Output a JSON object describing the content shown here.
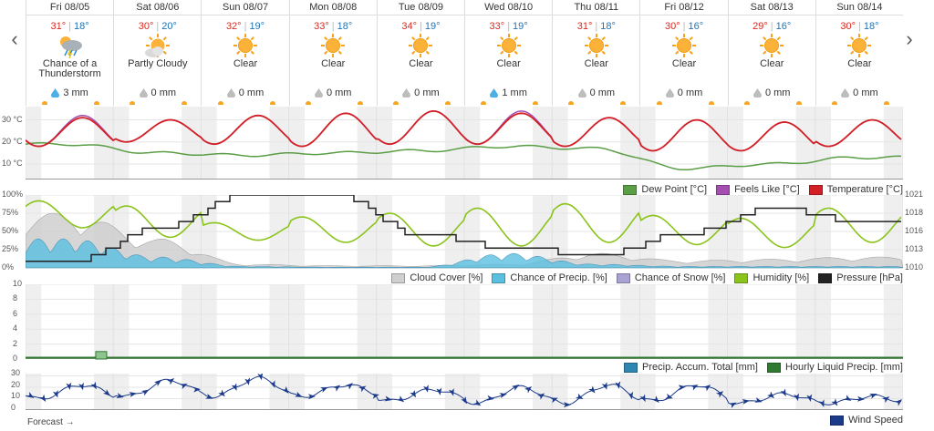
{
  "nav": {
    "prev": "‹",
    "next": "›"
  },
  "days": [
    {
      "name": "Fri 08/05",
      "hi": "31°",
      "lo": "18°",
      "icon": "thunderstorm-icon",
      "cond": "Chance of a Thunderstorm",
      "precip": "3 mm",
      "rain": true
    },
    {
      "name": "Sat 08/06",
      "hi": "30°",
      "lo": "20°",
      "icon": "partly-cloudy-icon",
      "cond": "Partly Cloudy",
      "precip": "0 mm",
      "rain": false
    },
    {
      "name": "Sun 08/07",
      "hi": "32°",
      "lo": "19°",
      "icon": "sun-icon",
      "cond": "Clear",
      "precip": "0 mm",
      "rain": false
    },
    {
      "name": "Mon 08/08",
      "hi": "33°",
      "lo": "18°",
      "icon": "sun-icon",
      "cond": "Clear",
      "precip": "0 mm",
      "rain": false
    },
    {
      "name": "Tue 08/09",
      "hi": "34°",
      "lo": "19°",
      "icon": "sun-icon",
      "cond": "Clear",
      "precip": "0 mm",
      "rain": false
    },
    {
      "name": "Wed 08/10",
      "hi": "33°",
      "lo": "19°",
      "icon": "sun-icon",
      "cond": "Clear",
      "precip": "1 mm",
      "rain": true
    },
    {
      "name": "Thu 08/11",
      "hi": "31°",
      "lo": "18°",
      "icon": "sun-icon",
      "cond": "Clear",
      "precip": "0 mm",
      "rain": false
    },
    {
      "name": "Fri 08/12",
      "hi": "30°",
      "lo": "16°",
      "icon": "sun-icon",
      "cond": "Clear",
      "precip": "0 mm",
      "rain": false
    },
    {
      "name": "Sat 08/13",
      "hi": "29°",
      "lo": "16°",
      "icon": "sun-icon",
      "cond": "Clear",
      "precip": "0 mm",
      "rain": false
    },
    {
      "name": "Sun 08/14",
      "hi": "30°",
      "lo": "18°",
      "icon": "sun-icon",
      "cond": "Clear",
      "precip": "0 mm",
      "rain": false
    }
  ],
  "colors": {
    "temperature": "#d32026",
    "feels_like": "#a44fb0",
    "dew_point": "#5a9e46",
    "cloud": "#cfcfcf",
    "precip_chance": "#5bc0e0",
    "snow": "#a9a3d3",
    "humidity": "#8ac41b",
    "pressure": "#222222",
    "accum": "#2f86b1",
    "hourly_liquid": "#2f7a2f",
    "wind": "#1c3a8a",
    "sun": "#f5a623"
  },
  "chart_data": [
    {
      "type": "line",
      "yticks": [
        "30 °C",
        "20 °C",
        "10 °C"
      ],
      "ylim": [
        3,
        36
      ],
      "legend": [
        "Dew Point [°C]",
        "Feels Like [°C]",
        "Temperature [°C]"
      ],
      "series": [
        {
          "name": "Temperature [°C]",
          "day_lo": [
            18,
            20,
            19,
            18,
            19,
            19,
            18,
            16,
            16,
            18
          ],
          "day_hi": [
            31,
            30,
            32,
            33,
            34,
            33,
            31,
            30,
            29,
            30
          ]
        },
        {
          "name": "Dew Point [°C]",
          "day_values": [
            19,
            15,
            14,
            15,
            16,
            18,
            17,
            8,
            10,
            13
          ]
        },
        {
          "name": "Feels Like [°C]",
          "day_hi": [
            32,
            30,
            32,
            33,
            34,
            34,
            31,
            30,
            29,
            30
          ]
        }
      ]
    },
    {
      "type": "area",
      "yticks_left": [
        "100%",
        "75%",
        "50%",
        "25%",
        "0%"
      ],
      "yticks_right": [
        "1021",
        "1018",
        "1016",
        "1013",
        "1010"
      ],
      "legend": [
        "Cloud Cover [%]",
        "Chance of Precip. [%]",
        "Chance of Snow [%]",
        "Humidity [%]",
        "Pressure [hPa]"
      ],
      "series": [
        {
          "name": "Humidity [%]",
          "day_lo": [
            55,
            42,
            38,
            35,
            30,
            30,
            35,
            32,
            28,
            35
          ],
          "day_hi": [
            92,
            85,
            62,
            70,
            75,
            82,
            88,
            72,
            68,
            82
          ]
        },
        {
          "name": "Pressure [hPa]",
          "day_values": [
            1011,
            1016,
            1021,
            1021,
            1015,
            1013,
            1012,
            1015,
            1019,
            1017
          ]
        },
        {
          "name": "Cloud Cover [%]",
          "day_values": [
            75,
            40,
            5,
            3,
            3,
            5,
            20,
            10,
            12,
            15
          ]
        },
        {
          "name": "Chance of Precip. [%]",
          "day_values": [
            40,
            15,
            2,
            1,
            1,
            20,
            5,
            2,
            2,
            2
          ]
        }
      ]
    },
    {
      "type": "bar",
      "yticks": [
        "10",
        "8",
        "6",
        "4",
        "2",
        "0"
      ],
      "ylim": [
        0,
        10
      ],
      "legend": [
        "Precip. Accum. Total [mm]",
        "Hourly Liquid Precip. [mm]"
      ],
      "series": [
        {
          "name": "Hourly Liquid Precip. [mm]",
          "values": [
            {
              "day": 0.8,
              "value": 1
            }
          ]
        }
      ]
    },
    {
      "type": "line",
      "yticks": [
        "30",
        "20",
        "10",
        "0"
      ],
      "ylim": [
        0,
        32
      ],
      "legend": [
        "Wind Speed"
      ],
      "series": [
        {
          "name": "Wind Speed",
          "day_lo": [
            10,
            12,
            12,
            12,
            8,
            6,
            6,
            8,
            6,
            6
          ],
          "day_hi": [
            22,
            26,
            28,
            22,
            18,
            20,
            22,
            22,
            14,
            12
          ]
        }
      ]
    }
  ],
  "footer": {
    "forecast": "Forecast →"
  }
}
